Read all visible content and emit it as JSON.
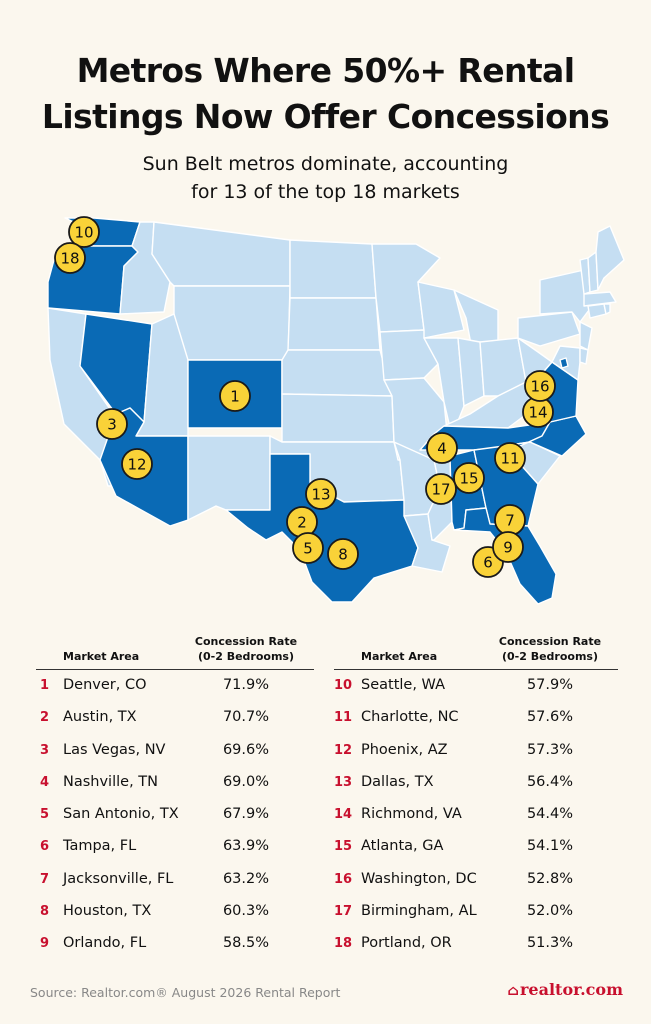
{
  "header": {
    "title_line1": "Metros Where 50%+ Rental",
    "title_line2": "Listings Now Offer Concessions",
    "subtitle_line1": "Sun Belt metros dominate, accounting",
    "subtitle_line2": "for 13 of the top 18 markets"
  },
  "colors": {
    "background": "#fbf7ee",
    "highlight_state": "#0a6ab5",
    "other_state": "#c5def2",
    "marker_fill": "#f9d238",
    "rank_red": "#c8102e"
  },
  "map": {
    "highlighted_states": [
      "WA",
      "OR",
      "NV",
      "AZ",
      "CO",
      "TX",
      "TN",
      "AL",
      "GA",
      "FL",
      "NC",
      "VA",
      "DC"
    ],
    "markers": [
      {
        "rank": "1",
        "state": "CO"
      },
      {
        "rank": "2",
        "state": "TX"
      },
      {
        "rank": "3",
        "state": "NV"
      },
      {
        "rank": "4",
        "state": "TN"
      },
      {
        "rank": "5",
        "state": "TX"
      },
      {
        "rank": "6",
        "state": "FL"
      },
      {
        "rank": "7",
        "state": "FL"
      },
      {
        "rank": "8",
        "state": "TX"
      },
      {
        "rank": "9",
        "state": "FL"
      },
      {
        "rank": "10",
        "state": "WA"
      },
      {
        "rank": "11",
        "state": "NC"
      },
      {
        "rank": "12",
        "state": "AZ"
      },
      {
        "rank": "13",
        "state": "TX"
      },
      {
        "rank": "14",
        "state": "VA"
      },
      {
        "rank": "15",
        "state": "GA"
      },
      {
        "rank": "16",
        "state": "DC"
      },
      {
        "rank": "17",
        "state": "AL"
      },
      {
        "rank": "18",
        "state": "OR"
      }
    ]
  },
  "table": {
    "col_market": "Market Area",
    "col_rate_line1": "Concession Rate",
    "col_rate_line2": "(0-2 Bedrooms)",
    "left": [
      {
        "rank": "1",
        "market": "Denver, CO",
        "rate": "71.9%"
      },
      {
        "rank": "2",
        "market": "Austin, TX",
        "rate": "70.7%"
      },
      {
        "rank": "3",
        "market": "Las Vegas, NV",
        "rate": "69.6%"
      },
      {
        "rank": "4",
        "market": "Nashville, TN",
        "rate": "69.0%"
      },
      {
        "rank": "5",
        "market": "San Antonio, TX",
        "rate": "67.9%"
      },
      {
        "rank": "6",
        "market": "Tampa, FL",
        "rate": "63.9%"
      },
      {
        "rank": "7",
        "market": "Jacksonville, FL",
        "rate": "63.2%"
      },
      {
        "rank": "8",
        "market": "Houston, TX",
        "rate": "60.3%"
      },
      {
        "rank": "9",
        "market": "Orlando, FL",
        "rate": "58.5%"
      }
    ],
    "right": [
      {
        "rank": "10",
        "market": "Seattle, WA",
        "rate": "57.9%"
      },
      {
        "rank": "11",
        "market": "Charlotte, NC",
        "rate": "57.6%"
      },
      {
        "rank": "12",
        "market": "Phoenix, AZ",
        "rate": "57.3%"
      },
      {
        "rank": "13",
        "market": "Dallas, TX",
        "rate": "56.4%"
      },
      {
        "rank": "14",
        "market": "Richmond, VA",
        "rate": "54.4%"
      },
      {
        "rank": "15",
        "market": "Atlanta, GA",
        "rate": "54.1%"
      },
      {
        "rank": "16",
        "market": "Washington, DC",
        "rate": "52.8%"
      },
      {
        "rank": "17",
        "market": "Birmingham, AL",
        "rate": "52.0%"
      },
      {
        "rank": "18",
        "market": "Portland, OR",
        "rate": "51.3%"
      }
    ]
  },
  "footer": {
    "source": "Source: Realtor.com® August 2026 Rental Report",
    "brand": "realtor.com"
  }
}
